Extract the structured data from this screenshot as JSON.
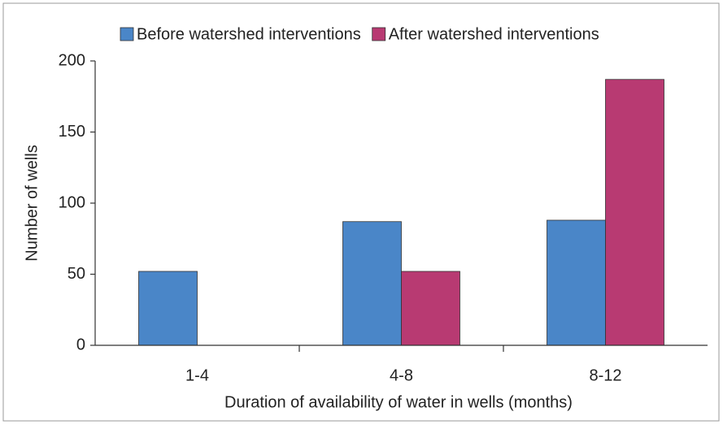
{
  "chart_data": {
    "type": "bar",
    "xlabel": "Duration of availability of water in wells (months)",
    "ylabel": "Number of wells",
    "categories": [
      "1-4",
      "4-8",
      "8-12"
    ],
    "series": [
      {
        "name": "Before watershed interventions",
        "color": "#4a86c8",
        "values": [
          52,
          87,
          88
        ]
      },
      {
        "name": "After watershed interventions",
        "color": "#b83a72",
        "values": [
          0,
          52,
          187
        ]
      }
    ],
    "ylim": [
      0,
      200
    ],
    "yticks": [
      0,
      50,
      100,
      150,
      200
    ],
    "legend": "top"
  }
}
